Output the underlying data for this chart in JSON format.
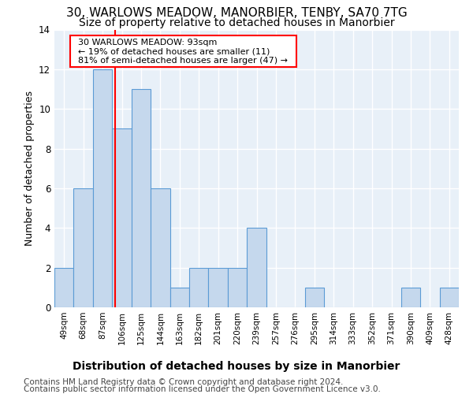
{
  "title": "30, WARLOWS MEADOW, MANORBIER, TENBY, SA70 7TG",
  "subtitle": "Size of property relative to detached houses in Manorbier",
  "xlabel": "Distribution of detached houses by size in Manorbier",
  "ylabel": "Number of detached properties",
  "categories": [
    "49sqm",
    "68sqm",
    "87sqm",
    "106sqm",
    "125sqm",
    "144sqm",
    "163sqm",
    "182sqm",
    "201sqm",
    "220sqm",
    "239sqm",
    "257sqm",
    "276sqm",
    "295sqm",
    "314sqm",
    "333sqm",
    "352sqm",
    "371sqm",
    "390sqm",
    "409sqm",
    "428sqm"
  ],
  "values": [
    2,
    6,
    12,
    9,
    11,
    6,
    1,
    2,
    2,
    2,
    4,
    0,
    0,
    1,
    0,
    0,
    0,
    0,
    1,
    0,
    1
  ],
  "bar_color": "#c5d8ed",
  "bar_edge_color": "#5b9bd5",
  "red_line_x": 2.65,
  "annotation_text_line1": "  30 WARLOWS MEADOW: 93sqm  ",
  "annotation_text_line2": "  ← 19% of detached houses are smaller (11)  ",
  "annotation_text_line3": "  81% of semi-detached houses are larger (47) →  ",
  "ylim": [
    0,
    14
  ],
  "yticks": [
    0,
    2,
    4,
    6,
    8,
    10,
    12,
    14
  ],
  "footer_line1": "Contains HM Land Registry data © Crown copyright and database right 2024.",
  "footer_line2": "Contains public sector information licensed under the Open Government Licence v3.0.",
  "bg_color": "#e8f0f8",
  "grid_color": "#ffffff",
  "title_fontsize": 11,
  "subtitle_fontsize": 10,
  "ylabel_fontsize": 9,
  "xlabel_fontsize": 10,
  "tick_fontsize": 7.5,
  "annotation_fontsize": 8,
  "footer_fontsize": 7.5
}
